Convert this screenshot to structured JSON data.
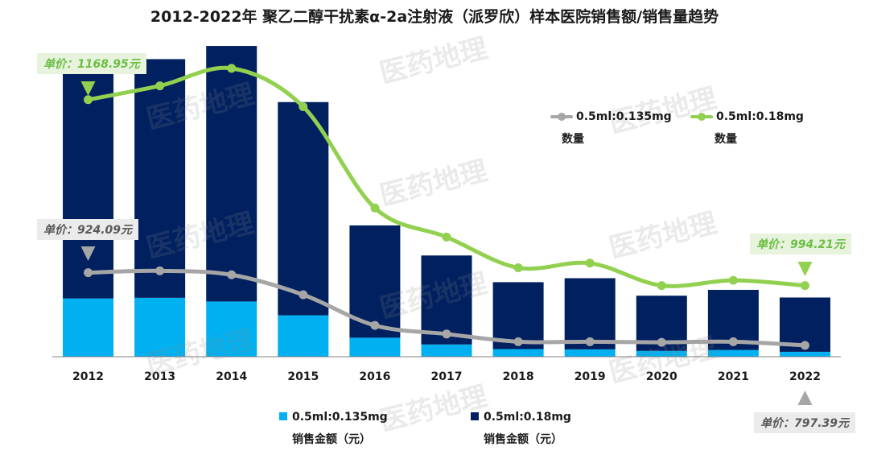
{
  "title": "2012-2022年 聚乙二醇干扰素α-2a注射液（派罗欣）样本医院销售额/销售量趋势",
  "watermark": "医药地理",
  "colors": {
    "bar_small": "#00b0f0",
    "bar_large": "#002060",
    "line_small": "#a6a6a6",
    "line_large": "#92d050",
    "callout_green_text": "#6cbe45",
    "callout_gray_text": "#595959"
  },
  "callouts": {
    "top_left": "单价：1168.95元",
    "mid_left": "单价：924.09元",
    "right_green": "单价：994.21元",
    "bottom_right": "单价：797.39元"
  },
  "legend": {
    "line_small": {
      "label": "0.5ml:0.135mg",
      "sub": "数量"
    },
    "line_large": {
      "label": "0.5ml:0.18mg",
      "sub": "数量"
    },
    "bar_small": {
      "label": "0.5ml:0.135mg",
      "sub": "销售金额（元）"
    },
    "bar_large": {
      "label": "0.5ml:0.18mg",
      "sub": "销售金额（元）"
    }
  },
  "chart_data": {
    "type": "bar",
    "bar_mode": "stacked",
    "categories": [
      "2012",
      "2013",
      "2014",
      "2015",
      "2016",
      "2017",
      "2018",
      "2019",
      "2020",
      "2021",
      "2022"
    ],
    "ylim": [
      0,
      100
    ],
    "series": [
      {
        "name": "0.5ml:0.135mg 销售金额（元）",
        "kind": "bar",
        "color": "#00b0f0",
        "values": [
          19.0,
          19.2,
          18.0,
          13.5,
          6.2,
          4.0,
          2.5,
          2.4,
          1.9,
          2.2,
          1.6
        ]
      },
      {
        "name": "0.5ml:0.18mg 销售金额（元）",
        "kind": "bar",
        "color": "#002060",
        "values": [
          78.8,
          77.8,
          83.3,
          69.5,
          36.6,
          29.0,
          21.8,
          23.2,
          18.0,
          19.6,
          17.7
        ]
      },
      {
        "name": "0.5ml:0.135mg 数量",
        "kind": "line",
        "color": "#a6a6a6",
        "values": [
          27.4,
          28.0,
          26.7,
          20.2,
          10.2,
          7.4,
          4.9,
          4.9,
          4.7,
          4.9,
          3.7
        ]
      },
      {
        "name": "0.5ml:0.18mg 数量",
        "kind": "line",
        "color": "#92d050",
        "values": [
          83.8,
          88.3,
          94.0,
          81.5,
          48.5,
          39.0,
          29.0,
          30.5,
          23.2,
          24.9,
          23.2
        ]
      }
    ]
  }
}
